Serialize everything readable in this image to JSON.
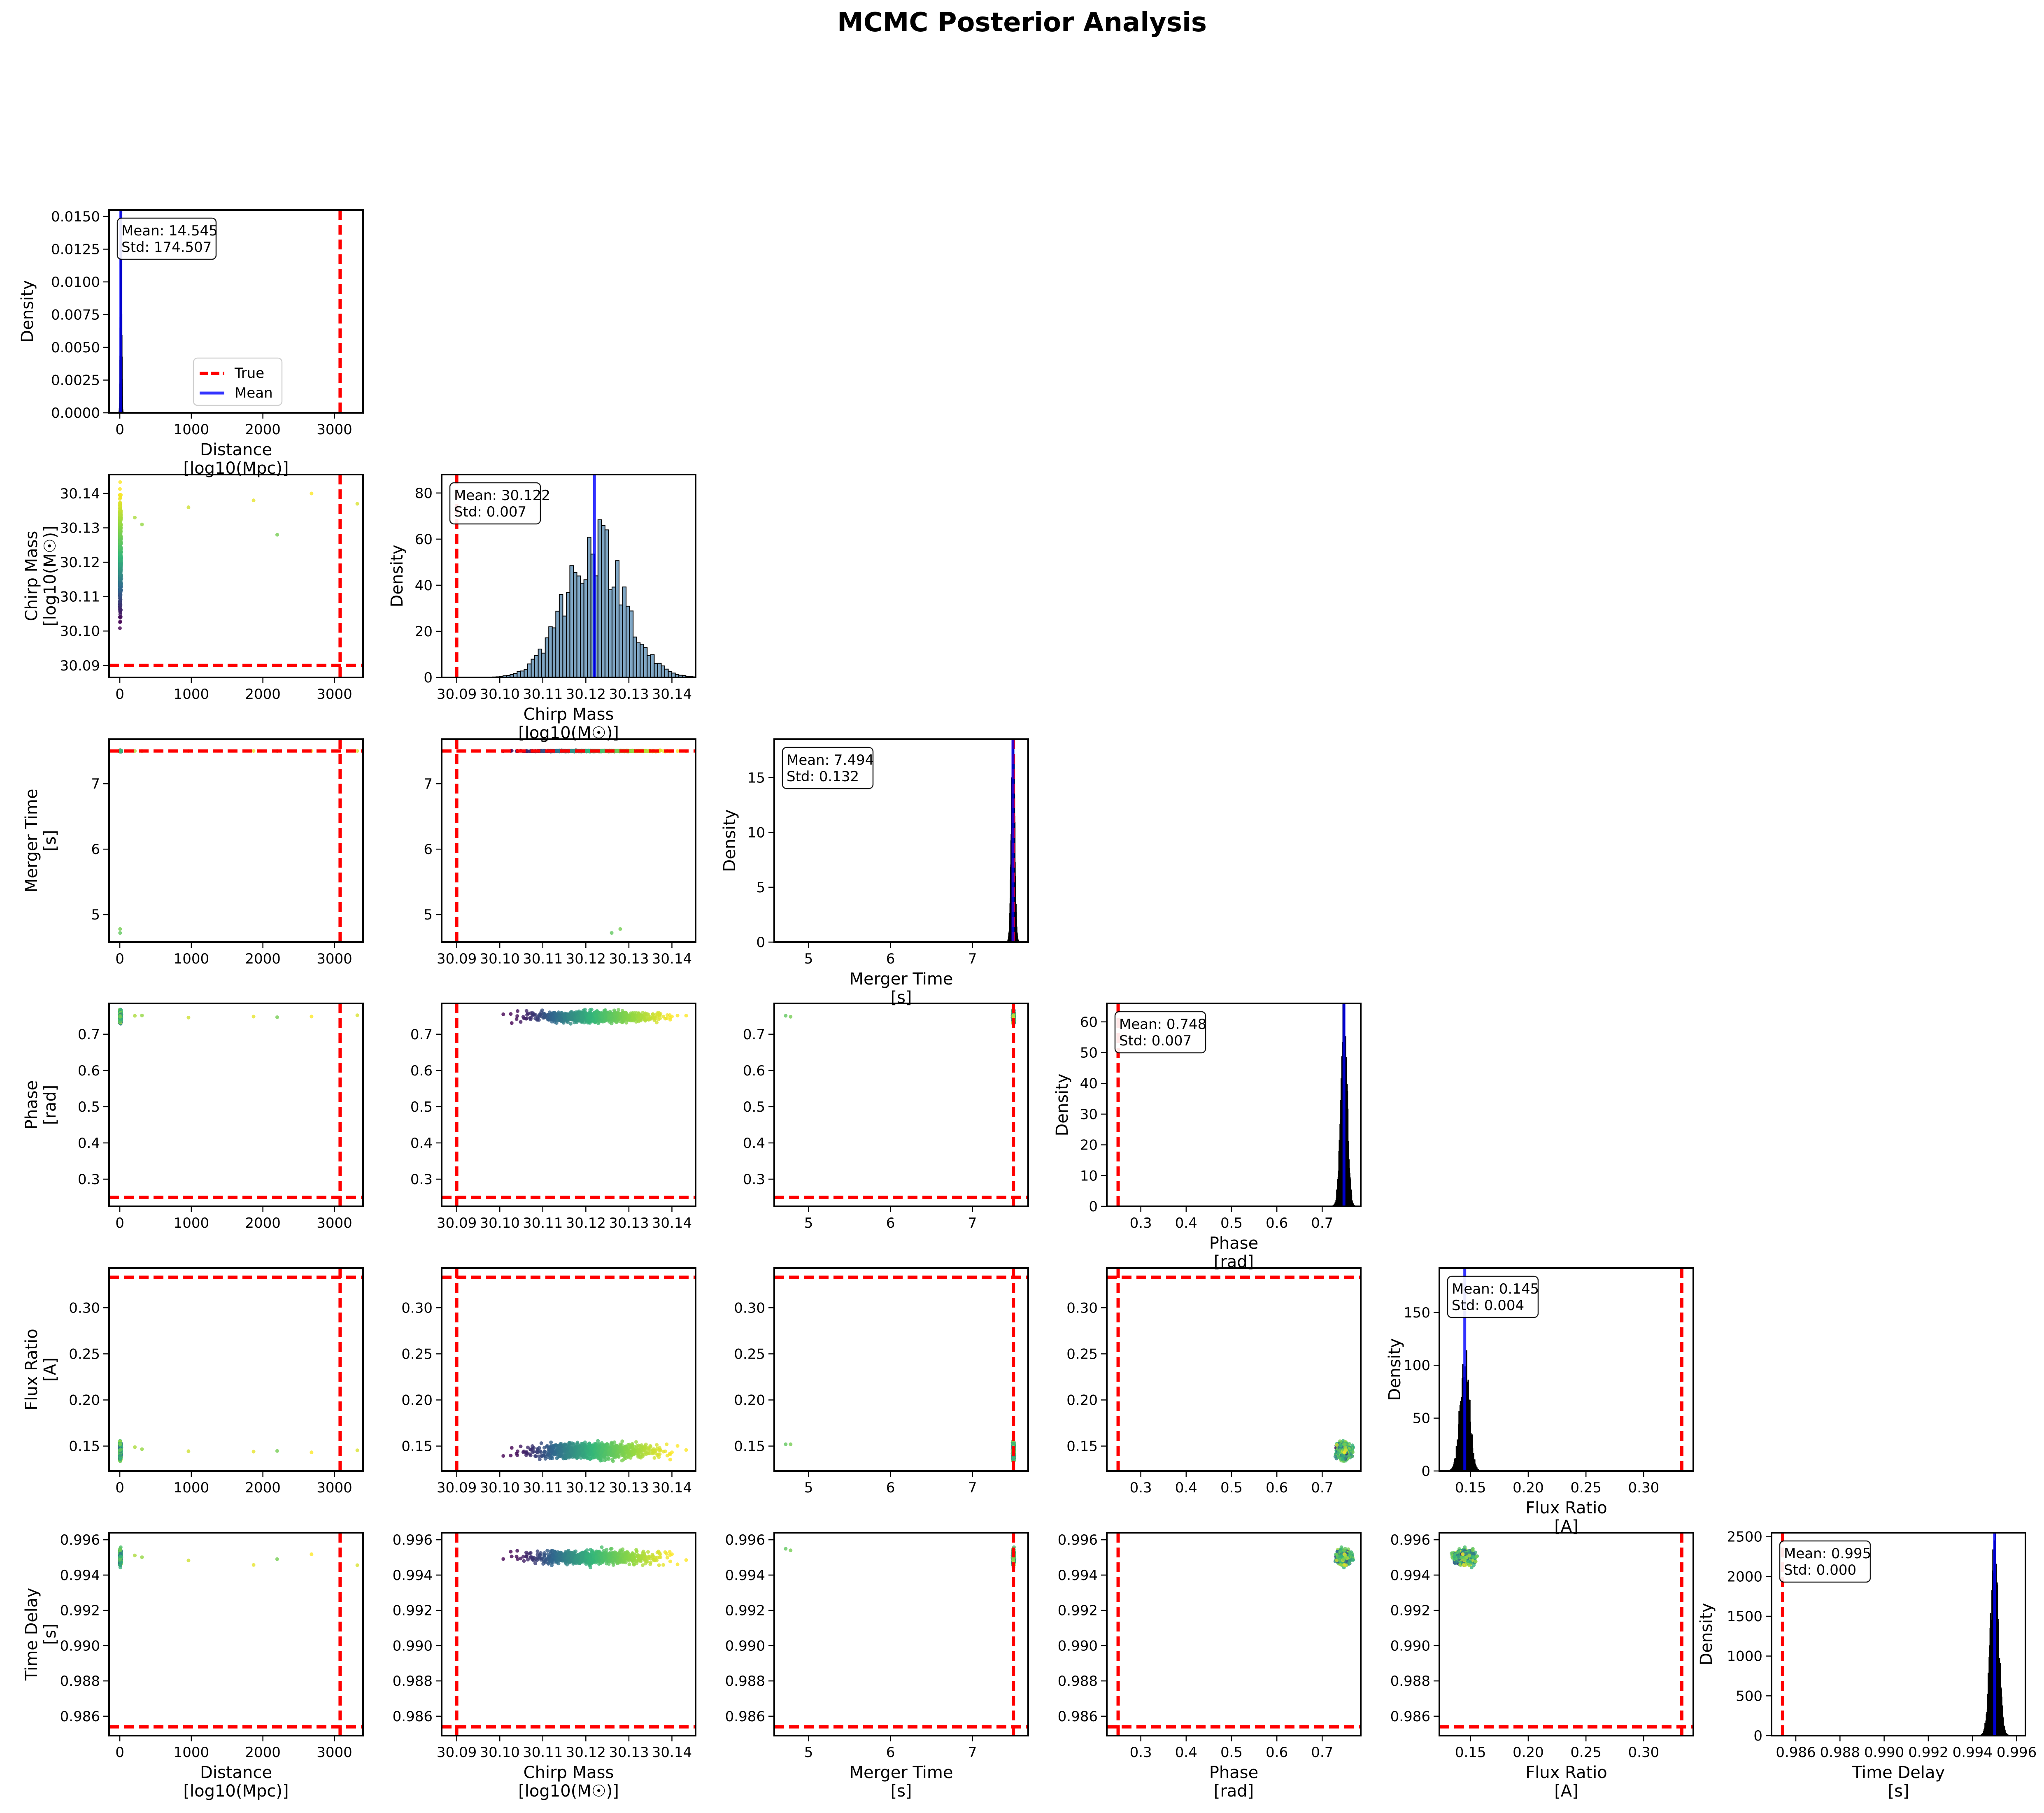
{
  "title": "MCMC Posterior Analysis",
  "colors": {
    "true_line": "#ff0000",
    "mean_line": "#0000ff",
    "hist_fill": "#7fa6c4",
    "hist_edge": "#000000",
    "scatter_cmap": [
      "#440154",
      "#31688e",
      "#35b779",
      "#90d743",
      "#fde725"
    ]
  },
  "legend": {
    "true_label": "True",
    "mean_label": "Mean",
    "placement": "lower-center of first panel"
  },
  "chart_data": {
    "type": "corner",
    "density_label": "Density",
    "params": [
      {
        "name": "Distance",
        "unit": "[log10(Mpc)]",
        "range": [
          -150,
          3400
        ],
        "ticks": [
          0,
          1000,
          2000,
          3000
        ],
        "tick_labels": [
          "0",
          "1000",
          "2000",
          "3000"
        ],
        "truth": 3080,
        "mean": 14.545,
        "std": 174.507,
        "stats": [
          "Mean: 14.545",
          "Std: 174.507"
        ],
        "hist_ylim": [
          0,
          0.0155
        ],
        "hist_yticks": [
          0,
          0.0025,
          0.005,
          0.0075,
          0.01,
          0.0125,
          0.015
        ],
        "hist_ytick_labels": [
          "0.0000",
          "0.0025",
          "0.0050",
          "0.0075",
          "0.0100",
          "0.0125",
          "0.0150"
        ]
      },
      {
        "name": "Chirp Mass",
        "unit": "[log10(M☉)]",
        "range": [
          30.0865,
          30.1455
        ],
        "ticks": [
          30.09,
          30.1,
          30.11,
          30.12,
          30.13,
          30.14
        ],
        "tick_labels": [
          "30.09",
          "30.10",
          "30.11",
          "30.12",
          "30.13",
          "30.14"
        ],
        "truth": 30.09,
        "mean": 30.122,
        "std": 0.007,
        "stats": [
          "Mean: 30.122",
          "Std: 0.007"
        ],
        "hist_ylim": [
          0,
          88
        ],
        "hist_yticks": [
          0,
          20,
          40,
          60,
          80
        ],
        "hist_ytick_labels": [
          "0",
          "20",
          "40",
          "60",
          "80"
        ]
      },
      {
        "name": "Merger Time",
        "unit": "[s]",
        "range": [
          4.58,
          7.68
        ],
        "ticks": [
          5,
          6,
          7
        ],
        "tick_labels": [
          "5",
          "6",
          "7"
        ],
        "truth": 7.5,
        "mean": 7.494,
        "std": 0.132,
        "stats": [
          "Mean: 7.494",
          "Std: 0.132"
        ],
        "hist_ylim": [
          0,
          18.5
        ],
        "hist_yticks": [
          0,
          5,
          10,
          15
        ],
        "hist_ytick_labels": [
          "0",
          "5",
          "10",
          "15"
        ]
      },
      {
        "name": "Phase",
        "unit": "[rad]",
        "range": [
          0.225,
          0.785
        ],
        "ticks": [
          0.3,
          0.4,
          0.5,
          0.6,
          0.7
        ],
        "tick_labels": [
          "0.3",
          "0.4",
          "0.5",
          "0.6",
          "0.7"
        ],
        "truth": 0.25,
        "mean": 0.748,
        "std": 0.007,
        "stats": [
          "Mean: 0.748",
          "Std: 0.007"
        ],
        "hist_ylim": [
          0,
          66
        ],
        "hist_yticks": [
          0,
          10,
          20,
          30,
          40,
          50,
          60
        ],
        "hist_ytick_labels": [
          "0",
          "10",
          "20",
          "30",
          "40",
          "50",
          "60"
        ]
      },
      {
        "name": "Flux Ratio",
        "unit": "[A]",
        "range": [
          0.123,
          0.343
        ],
        "ticks": [
          0.15,
          0.2,
          0.25,
          0.3
        ],
        "tick_labels": [
          "0.15",
          "0.20",
          "0.25",
          "0.30"
        ],
        "truth": 0.333,
        "mean": 0.145,
        "std": 0.004,
        "stats": [
          "Mean: 0.145",
          "Std: 0.004"
        ],
        "hist_ylim": [
          0,
          192
        ],
        "hist_yticks": [
          0,
          50,
          100,
          150
        ],
        "hist_ytick_labels": [
          "0",
          "50",
          "100",
          "150"
        ]
      },
      {
        "name": "Time Delay",
        "unit": "[s]",
        "range": [
          0.9849,
          0.9964
        ],
        "ticks": [
          0.986,
          0.988,
          0.99,
          0.992,
          0.994,
          0.996
        ],
        "tick_labels": [
          "0.986",
          "0.988",
          "0.990",
          "0.992",
          "0.994",
          "0.996"
        ],
        "truth": 0.9854,
        "mean": 0.995,
        "std": 0.0002,
        "stats": [
          "Mean: 0.995",
          "Std: 0.000"
        ],
        "hist_ylim": [
          0,
          2550
        ],
        "hist_yticks": [
          0,
          500,
          1000,
          1500,
          2000,
          2500
        ],
        "hist_ytick_labels": [
          "0",
          "500",
          "1000",
          "1500",
          "2000",
          "2500"
        ]
      }
    ]
  }
}
